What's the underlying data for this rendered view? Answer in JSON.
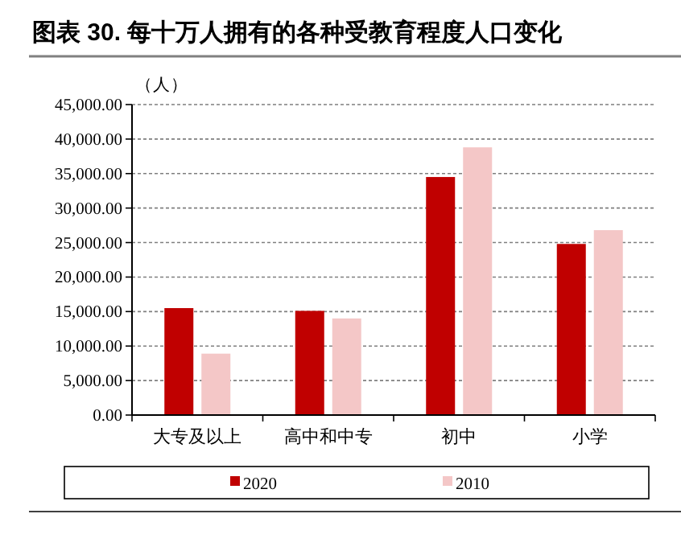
{
  "chart_data": {
    "type": "bar",
    "title": "图表 30. 每十万人拥有的各种受教育程度人口变化",
    "ylabel": "（人）",
    "categories": [
      "大专及以上",
      "高中和中专",
      "初中",
      "小学"
    ],
    "series": [
      {
        "name": "2020",
        "color": "#c00000",
        "values": [
          15500,
          15100,
          34500,
          24800
        ]
      },
      {
        "name": "2010",
        "color": "#f4c7c7",
        "values": [
          8900,
          14000,
          38800,
          26800
        ]
      }
    ],
    "ylim": [
      0,
      45000
    ],
    "yticks": [
      {
        "value": 0,
        "label": "0.00"
      },
      {
        "value": 5000,
        "label": "5,000.00"
      },
      {
        "value": 10000,
        "label": "10,000.00"
      },
      {
        "value": 15000,
        "label": "15,000.00"
      },
      {
        "value": 20000,
        "label": "20,000.00"
      },
      {
        "value": 25000,
        "label": "25,000.00"
      },
      {
        "value": 30000,
        "label": "30,000.00"
      },
      {
        "value": 35000,
        "label": "35,000.00"
      },
      {
        "value": 40000,
        "label": "40,000.00"
      },
      {
        "value": 45000,
        "label": "45,000.00"
      }
    ],
    "grid": "y",
    "legend": "bottom"
  }
}
